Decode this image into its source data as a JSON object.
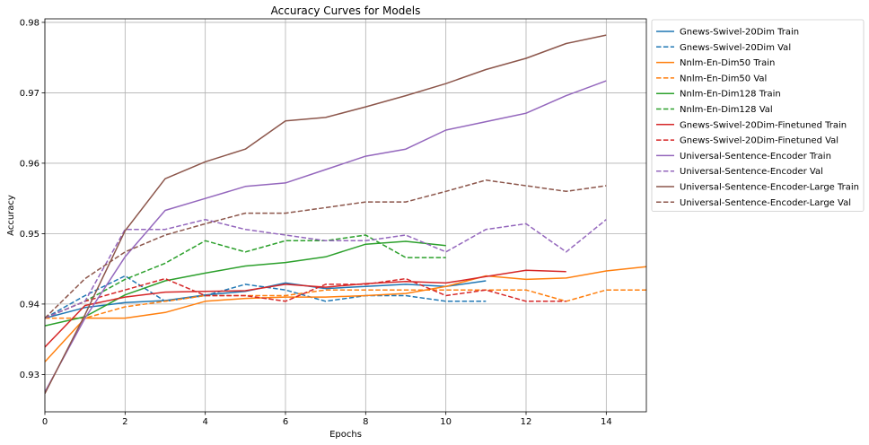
{
  "chart_data": {
    "type": "line",
    "title": "Accuracy Curves for Models",
    "xlabel": "Epochs",
    "ylabel": "Accuracy",
    "xlim": [
      0,
      15
    ],
    "ylim": [
      0.9247,
      0.9805
    ],
    "x_ticks": [
      0,
      2,
      4,
      6,
      8,
      10,
      12,
      14
    ],
    "y_ticks": [
      0.93,
      0.94,
      0.95,
      0.96,
      0.97,
      0.98
    ],
    "y_tick_labels": [
      "0.93",
      "0.94",
      "0.95",
      "0.96",
      "0.97",
      "0.98"
    ],
    "grid": true,
    "legend_position": "outside-right",
    "series": [
      {
        "name": "Gnews-Swivel-20Dim Train",
        "color": "#1f77b4",
        "dash": "solid",
        "x": [
          0,
          1,
          2,
          3,
          4,
          5,
          6,
          7,
          8,
          9,
          10,
          11
        ],
        "y": [
          0.938,
          0.9395,
          0.9402,
          0.9405,
          0.9413,
          0.9418,
          0.943,
          0.9422,
          0.9425,
          0.9428,
          0.9425,
          0.9433
        ]
      },
      {
        "name": "Gnews-Swivel-20Dim Val",
        "color": "#1f77b4",
        "dash": "dashed",
        "x": [
          0,
          1,
          2,
          3,
          4,
          5,
          6,
          7,
          8,
          9,
          10,
          11
        ],
        "y": [
          0.938,
          0.9412,
          0.944,
          0.9404,
          0.9412,
          0.9428,
          0.942,
          0.9404,
          0.9412,
          0.9412,
          0.9404,
          0.9404
        ]
      },
      {
        "name": "Nnlm-En-Dim50 Train",
        "color": "#ff7f0e",
        "dash": "solid",
        "x": [
          0,
          1,
          2,
          3,
          4,
          5,
          6,
          7,
          8,
          9,
          10,
          11,
          12,
          13,
          14,
          15
        ],
        "y": [
          0.9318,
          0.938,
          0.938,
          0.9388,
          0.9404,
          0.9408,
          0.941,
          0.941,
          0.9412,
          0.9415,
          0.9425,
          0.944,
          0.9435,
          0.9437,
          0.9447,
          0.9453
        ]
      },
      {
        "name": "Nnlm-En-Dim50 Val",
        "color": "#ff7f0e",
        "dash": "dashed",
        "x": [
          0,
          1,
          2,
          3,
          4,
          5,
          6,
          7,
          8,
          9,
          10,
          11,
          12,
          13,
          14,
          15
        ],
        "y": [
          0.938,
          0.938,
          0.9396,
          0.9404,
          0.9412,
          0.9412,
          0.9412,
          0.942,
          0.942,
          0.942,
          0.942,
          0.942,
          0.942,
          0.9404,
          0.942,
          0.942
        ]
      },
      {
        "name": "Nnlm-En-Dim128 Train",
        "color": "#2ca02c",
        "dash": "solid",
        "x": [
          0,
          1,
          2,
          3,
          4,
          5,
          6,
          7,
          8,
          9,
          10
        ],
        "y": [
          0.9369,
          0.9382,
          0.9413,
          0.9433,
          0.9444,
          0.9454,
          0.9459,
          0.9467,
          0.9485,
          0.9489,
          0.9483
        ]
      },
      {
        "name": "Nnlm-En-Dim128 Val",
        "color": "#2ca02c",
        "dash": "dashed",
        "x": [
          0,
          1,
          2,
          3,
          4,
          5,
          6,
          7,
          8,
          9,
          10
        ],
        "y": [
          0.938,
          0.9404,
          0.9435,
          0.9458,
          0.949,
          0.9474,
          0.949,
          0.949,
          0.9498,
          0.9466,
          0.9466
        ]
      },
      {
        "name": "Gnews-Swivel-20Dim-Finetuned Train",
        "color": "#d62728",
        "dash": "solid",
        "x": [
          0,
          1,
          2,
          3,
          4,
          5,
          6,
          7,
          8,
          9,
          10,
          11,
          12,
          13
        ],
        "y": [
          0.9339,
          0.9398,
          0.941,
          0.9417,
          0.9418,
          0.9419,
          0.9428,
          0.9424,
          0.9429,
          0.9432,
          0.943,
          0.9439,
          0.9448,
          0.9446
        ]
      },
      {
        "name": "Gnews-Swivel-20Dim-Finetuned Val",
        "color": "#d62728",
        "dash": "dashed",
        "x": [
          0,
          1,
          2,
          3,
          4,
          5,
          6,
          7,
          8,
          9,
          10,
          11,
          12,
          13
        ],
        "y": [
          0.938,
          0.9404,
          0.942,
          0.9436,
          0.9412,
          0.9412,
          0.9404,
          0.9428,
          0.9428,
          0.9436,
          0.9412,
          0.942,
          0.9404,
          0.9404
        ]
      },
      {
        "name": "Universal-Sentence-Encoder Train",
        "color": "#9467bd",
        "dash": "solid",
        "x": [
          0,
          1,
          2,
          3,
          4,
          5,
          6,
          7,
          8,
          9,
          10,
          11,
          12,
          13,
          14
        ],
        "y": [
          0.9275,
          0.938,
          0.9467,
          0.9533,
          0.955,
          0.9567,
          0.9572,
          0.9591,
          0.961,
          0.962,
          0.9647,
          0.9659,
          0.9671,
          0.9696,
          0.9717
        ]
      },
      {
        "name": "Universal-Sentence-Encoder Val",
        "color": "#9467bd",
        "dash": "dashed",
        "x": [
          0,
          1,
          2,
          3,
          4,
          5,
          6,
          7,
          8,
          9,
          10,
          11,
          12,
          13,
          14
        ],
        "y": [
          0.938,
          0.9404,
          0.9506,
          0.9506,
          0.952,
          0.9506,
          0.9498,
          0.949,
          0.949,
          0.9498,
          0.9474,
          0.9506,
          0.9514,
          0.9474,
          0.952
        ]
      },
      {
        "name": "Universal-Sentence-Encoder-Large Train",
        "color": "#8c564b",
        "dash": "solid",
        "x": [
          0,
          1,
          2,
          3,
          4,
          5,
          6,
          7,
          8,
          9,
          10,
          11,
          12,
          13,
          14
        ],
        "y": [
          0.9273,
          0.9385,
          0.9504,
          0.9578,
          0.9602,
          0.962,
          0.966,
          0.9665,
          0.968,
          0.9696,
          0.9713,
          0.9733,
          0.9749,
          0.977,
          0.9782
        ]
      },
      {
        "name": "Universal-Sentence-Encoder-Large Val",
        "color": "#8c564b",
        "dash": "dashed",
        "x": [
          0,
          1,
          2,
          3,
          4,
          5,
          6,
          7,
          8,
          9,
          10,
          11,
          12,
          13,
          14
        ],
        "y": [
          0.938,
          0.9436,
          0.9474,
          0.9498,
          0.9514,
          0.9529,
          0.9529,
          0.9537,
          0.9545,
          0.9545,
          0.956,
          0.9576,
          0.9568,
          0.956,
          0.9568
        ]
      }
    ]
  }
}
